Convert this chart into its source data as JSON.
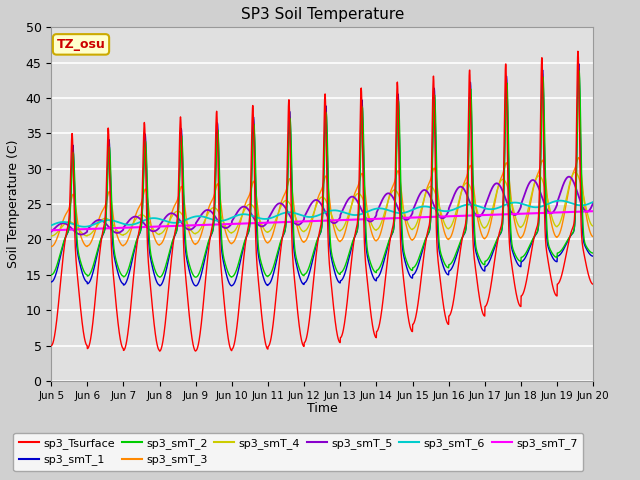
{
  "title": "SP3 Soil Temperature",
  "xlabel": "Time",
  "ylabel": "Soil Temperature (C)",
  "ylim": [
    0,
    50
  ],
  "background_color": "#d0d0d0",
  "plot_bg_color": "#e0e0e0",
  "tz_label": "TZ_osu",
  "tz_box_facecolor": "#ffffcc",
  "tz_box_edgecolor": "#ccaa00",
  "tz_text_color": "#cc0000",
  "series_colors": {
    "sp3_Tsurface": "#ff0000",
    "sp3_smT_1": "#0000cc",
    "sp3_smT_2": "#00cc00",
    "sp3_smT_3": "#ff8800",
    "sp3_smT_4": "#cccc00",
    "sp3_smT_5": "#8800cc",
    "sp3_smT_6": "#00cccc",
    "sp3_smT_7": "#ff00ff"
  },
  "xtick_labels": [
    "Jun 5",
    "Jun 6",
    "Jun 7",
    "Jun 8",
    "Jun 9",
    "Jun 10",
    "Jun 11",
    "Jun 12",
    "Jun 13",
    "Jun 14",
    "Jun 15",
    "Jun 16",
    "Jun 17",
    "Jun 18",
    "Jun 19",
    "Jun 20"
  ],
  "ytick_values": [
    0,
    5,
    10,
    15,
    20,
    25,
    30,
    35,
    40,
    45,
    50
  ],
  "n_days": 15,
  "points_per_day": 144
}
